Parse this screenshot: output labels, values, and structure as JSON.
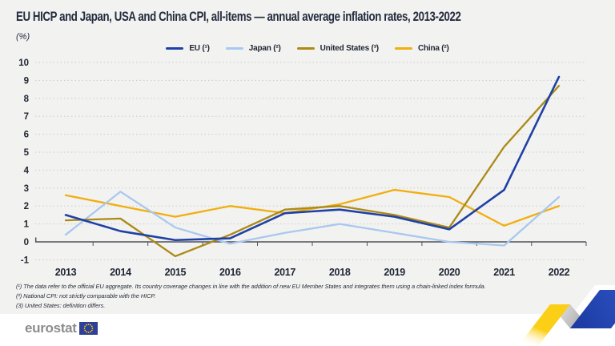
{
  "chart_data": {
    "type": "line",
    "title": "EU HICP and Japan, USA and China CPI, all-items — annual average inflation rates, 2013-2022",
    "unit_label": "(%)",
    "categories": [
      "2013",
      "2014",
      "2015",
      "2016",
      "2017",
      "2018",
      "2019",
      "2020",
      "2021",
      "2022"
    ],
    "series": [
      {
        "id": "eu",
        "name": "EU (¹)",
        "color": "#1F41A6",
        "values": [
          1.5,
          0.6,
          0.1,
          0.2,
          1.6,
          1.8,
          1.4,
          0.7,
          2.9,
          9.2
        ]
      },
      {
        "id": "japan",
        "name": "Japan (²)",
        "color": "#A9C8EF",
        "values": [
          0.4,
          2.8,
          0.8,
          -0.1,
          0.5,
          1.0,
          0.5,
          0.0,
          -0.2,
          2.5
        ]
      },
      {
        "id": "united-states",
        "name": "United States (³)",
        "color": "#AB8A16",
        "values": [
          1.2,
          1.3,
          -0.8,
          0.4,
          1.8,
          2.0,
          1.5,
          0.8,
          5.3,
          8.7
        ]
      },
      {
        "id": "china",
        "name": "China (²)",
        "color": "#F1AE0F",
        "values": [
          2.6,
          2.0,
          1.4,
          2.0,
          1.6,
          2.1,
          2.9,
          2.5,
          0.9,
          2.0
        ]
      }
    ],
    "draw_order": [
      3,
      1,
      2,
      0
    ],
    "yticks": [
      -1,
      0,
      1,
      2,
      3,
      4,
      5,
      6,
      7,
      8,
      9,
      10
    ],
    "ylim": [
      -1,
      10
    ],
    "xlabel": "",
    "ylabel": "(%)",
    "grid": "horizontal-dashed",
    "legend_position": "top-center"
  },
  "footnotes": [
    "(¹) The data refer to the official EU aggregate. Its country coverage changes in line with the addition of new EU Member States and integrates them using a chain-linked index formula.",
    "(²) National CPI: not strictly comparable with the HICP.",
    "(3) United States: definition differs."
  ],
  "branding": {
    "logo_text": "eurostat",
    "flag_blue": "#2E3F97",
    "flag_star_yellow": "#FFCC00"
  },
  "colors": {
    "background": "#F2F2F1",
    "axis": "#4F5358",
    "gridline": "#CBCBCB",
    "text": "#1E2532"
  }
}
